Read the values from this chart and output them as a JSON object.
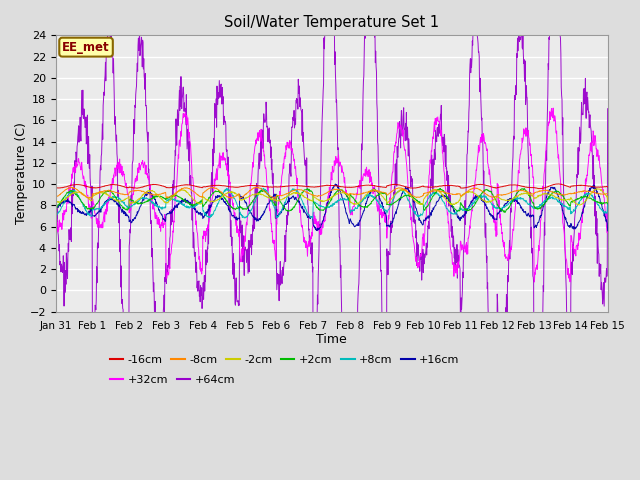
{
  "title": "Soil/Water Temperature Set 1",
  "xlabel": "Time",
  "ylabel": "Temperature (C)",
  "ylim": [
    -2,
    24
  ],
  "yticks": [
    -2,
    0,
    2,
    4,
    6,
    8,
    10,
    12,
    14,
    16,
    18,
    20,
    22,
    24
  ],
  "xtick_labels": [
    "Jan 31",
    "Feb 1",
    "Feb 2",
    "Feb 3",
    "Feb 4",
    "Feb 5",
    "Feb 6",
    "Feb 7",
    "Feb 8",
    "Feb 9",
    "Feb 10",
    "Feb 11",
    "Feb 12",
    "Feb 13",
    "Feb 14",
    "Feb 15"
  ],
  "station_label": "EE_met",
  "bg_color": "#dddddd",
  "plot_bg_color": "#ebebeb",
  "grid_color": "#ffffff",
  "lines": {
    "-16cm": {
      "color": "#dd0000",
      "base": 9.8,
      "amp": 0.12,
      "depth_factor": 0.0
    },
    "-8cm": {
      "color": "#ff8800",
      "base": 9.2,
      "amp": 0.25,
      "depth_factor": 0.0
    },
    "-2cm": {
      "color": "#cccc00",
      "base": 8.8,
      "amp": 0.4,
      "depth_factor": 0.0
    },
    "+2cm": {
      "color": "#00bb00",
      "base": 8.5,
      "amp": 0.55,
      "depth_factor": 0.0
    },
    "+8cm": {
      "color": "#00bbbb",
      "base": 8.2,
      "amp": 0.75,
      "depth_factor": 0.0
    },
    "+16cm": {
      "color": "#0000aa",
      "base": 7.8,
      "amp": 1.1,
      "depth_factor": 0.0
    },
    "+32cm": {
      "color": "#ff00ff",
      "base": 9.0,
      "amp": 4.0,
      "depth_factor": 0.0
    },
    "+64cm": {
      "color": "#9900cc",
      "base": 9.0,
      "amp": 12.0,
      "depth_factor": 0.0
    }
  },
  "legend_order": [
    "-16cm",
    "-8cm",
    "-2cm",
    "+2cm",
    "+8cm",
    "+16cm",
    "+32cm",
    "+64cm"
  ]
}
